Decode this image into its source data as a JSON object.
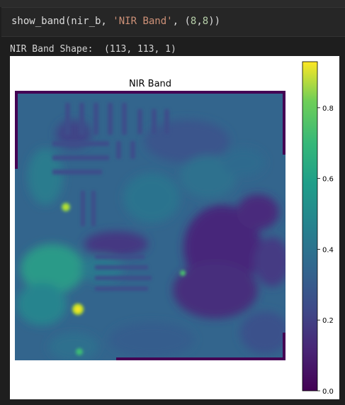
{
  "cell": {
    "code_func": "show_band",
    "code_arg1": "(nir_b, ",
    "code_arg_str": "'NIR Band'",
    "code_sep": ", (",
    "code_num1": "8",
    "code_comma": ",",
    "code_num2": "8",
    "code_close": "))"
  },
  "output": {
    "shape_text": "NIR Band Shape:  (113, 113, 1)"
  },
  "chart_data": {
    "type": "heatmap",
    "title": "NIR Band",
    "colormap": "viridis",
    "colorbar": {
      "min": 0.0,
      "max": 0.93,
      "ticks": [
        0.0,
        0.2,
        0.4,
        0.6,
        0.8
      ],
      "tick_labels": [
        "0.0",
        "0.2",
        "0.4",
        "0.6",
        "0.8"
      ]
    },
    "image_shape": [
      113,
      113,
      1
    ],
    "axes_visible": false
  }
}
